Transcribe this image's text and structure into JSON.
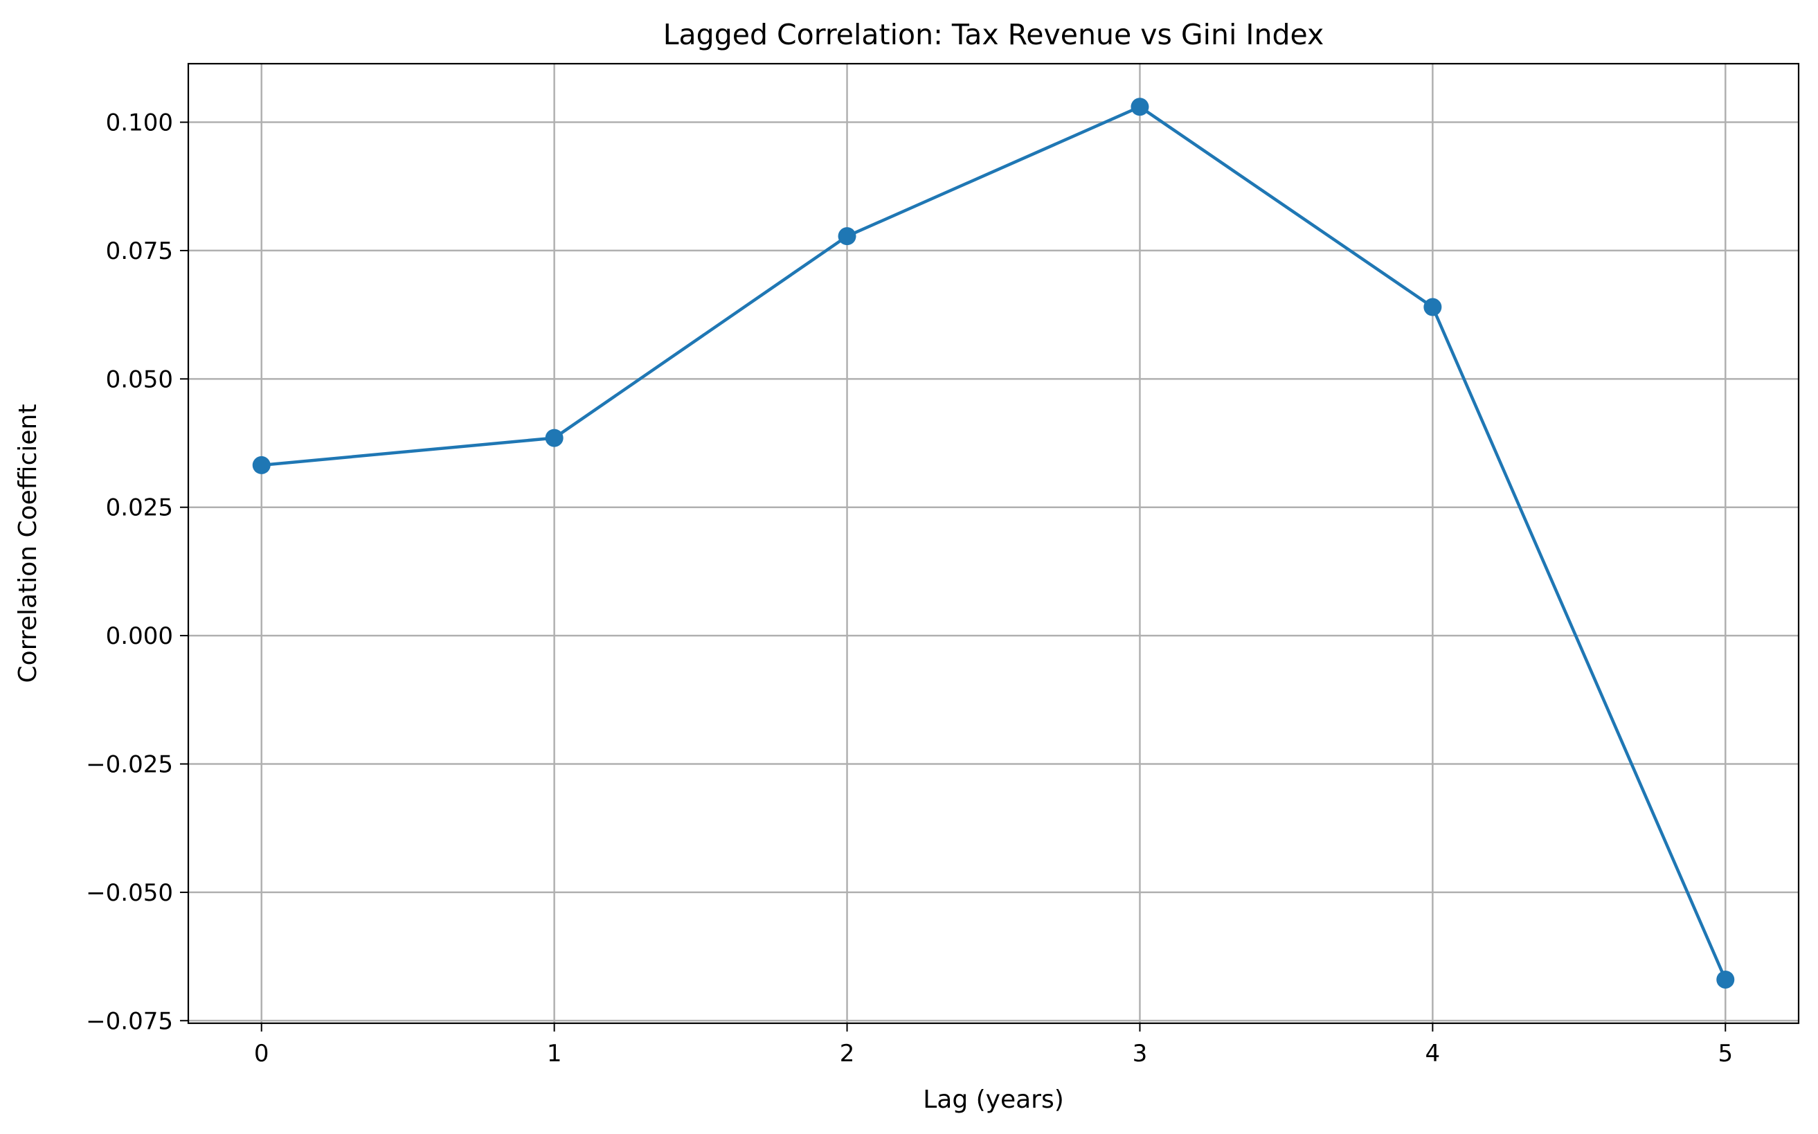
{
  "chart_data": {
    "type": "line",
    "title": "Lagged Correlation: Tax Revenue vs Gini Index",
    "xlabel": "Lag (years)",
    "ylabel": "Correlation Coefficient",
    "x": [
      0,
      1,
      2,
      3,
      4,
      5
    ],
    "series": [
      {
        "values": [
          0.0332,
          0.0385,
          0.0778,
          0.103,
          0.064,
          -0.067
        ],
        "color": "#1f77b4",
        "marker": "circle"
      }
    ],
    "xlim": [
      -0.25,
      5.25
    ],
    "ylim": [
      -0.0755,
      0.1114
    ],
    "xticks": [
      0,
      1,
      2,
      3,
      4,
      5
    ],
    "xtick_labels": [
      "0",
      "1",
      "2",
      "3",
      "4",
      "5"
    ],
    "yticks": [
      -0.075,
      -0.05,
      -0.025,
      0.0,
      0.025,
      0.05,
      0.075,
      0.1
    ],
    "ytick_labels": [
      "−0.075",
      "−0.050",
      "−0.025",
      "0.000",
      "0.025",
      "0.050",
      "0.075",
      "0.100"
    ],
    "grid": true,
    "legend": "none"
  }
}
